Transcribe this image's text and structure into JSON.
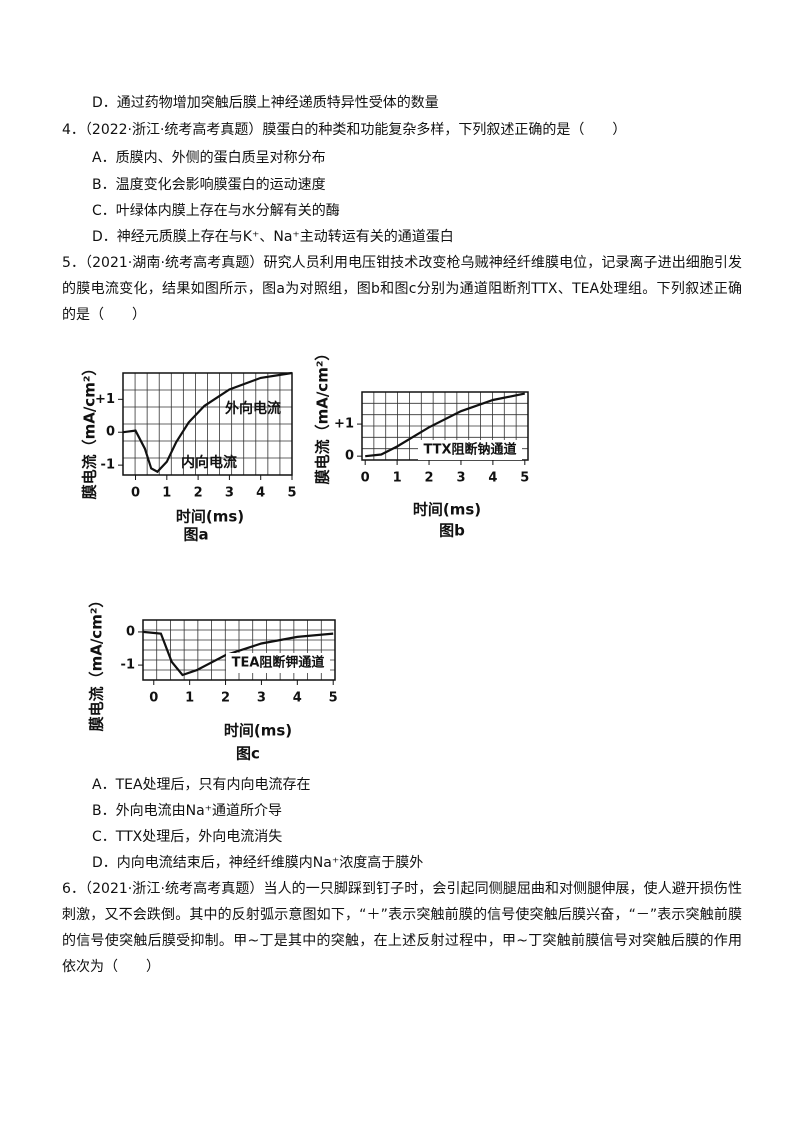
{
  "prev_option": "D．通过药物增加突触后膜上神经递质特异性受体的数量",
  "q4": {
    "text": "4．（2022·浙江·统考高考真题）膜蛋白的种类和功能复杂多样，下列叙述正确的是（　　）",
    "options": [
      "A．质膜内、外侧的蛋白质呈对称分布",
      "B．温度变化会影响膜蛋白的运动速度",
      "C．叶绿体内膜上存在与水分解有关的酶",
      "D．神经元质膜上存在与K⁺、Na⁺主动转运有关的通道蛋白"
    ]
  },
  "q5": {
    "text": "5．（2021·湖南·统考高考真题）研究人员利用电压钳技术改变枪乌贼神经纤维膜电位，记录离子进出细胞引发的膜电流变化，结果如图所示，图a为对照组，图b和图c分别为通道阻断剂TTX、TEA处理组。下列叙述正确的是（　　）",
    "figures": [
      {
        "type": "line",
        "caption": "图a",
        "x_label": "时间(ms)",
        "y_label": "膜电流（mA/cm²）",
        "x": [
          -0.4,
          0,
          0.3,
          0.5,
          0.7,
          1.0,
          1.3,
          1.7,
          2.2,
          3,
          4,
          5
        ],
        "values": [
          0,
          0.05,
          -0.5,
          -1.1,
          -1.2,
          -0.9,
          -0.3,
          0.3,
          0.8,
          1.3,
          1.65,
          1.8
        ],
        "xlim": [
          -0.4,
          5
        ],
        "ylim": [
          -1.3,
          1.8
        ],
        "xticks": [
          0,
          1,
          2,
          3,
          4,
          5
        ],
        "yticks": [
          {
            "value": 1,
            "label": "+1"
          },
          0,
          -1
        ],
        "annotations": [
          "外向电流",
          "内向电流"
        ]
      },
      {
        "type": "line",
        "caption": "图b",
        "x_label": "时间(ms)",
        "y_label": "膜电流（mA/cm²）",
        "x": [
          0,
          0.5,
          1,
          2,
          3,
          4,
          5
        ],
        "values": [
          0,
          0.05,
          0.3,
          0.9,
          1.4,
          1.75,
          1.95
        ],
        "xlim": [
          -0.1,
          5.1
        ],
        "ylim": [
          -0.12,
          2.0
        ],
        "xticks": [
          0,
          1,
          2,
          3,
          4,
          5
        ],
        "yticks": [
          {
            "value": 1,
            "label": "+1"
          },
          0
        ],
        "annotations": [
          "TTX阻断钠通道"
        ]
      },
      {
        "type": "line",
        "caption": "图c",
        "x_label": "时间(ms)",
        "y_label": "膜电流（mA/cm²）",
        "x": [
          -0.3,
          0.2,
          0.5,
          0.8,
          1.2,
          2,
          3,
          4,
          5
        ],
        "values": [
          0,
          -0.05,
          -0.9,
          -1.3,
          -1.15,
          -0.7,
          -0.35,
          -0.15,
          -0.05
        ],
        "xlim": [
          -0.3,
          5.05
        ],
        "ylim": [
          -1.45,
          0.36
        ],
        "xticks": [
          0,
          1,
          2,
          3,
          4,
          5
        ],
        "yticks": [
          0,
          -1
        ],
        "annotations": [
          "TEA阻断钾通道"
        ]
      }
    ],
    "options": [
      "A．TEA处理后，只有内向电流存在",
      "B．外向电流由Na⁺通道所介导",
      "C．TTX处理后，外向电流消失",
      "D．内向电流结束后，神经纤维膜内Na⁺浓度高于膜外"
    ]
  },
  "q6": {
    "text": "6．（2021·浙江·统考高考真题）当人的一只脚踩到钉子时，会引起同侧腿屈曲和对侧腿伸展，使人避开损伤性刺激，又不会跌倒。其中的反射弧示意图如下，“＋”表示突触前膜的信号使突触后膜兴奋，“－”表示突触前膜的信号使突触后膜受抑制。甲~丁是其中的突触，在上述反射过程中，甲~丁突触前膜信号对突触后膜的作用依次为（　　）"
  }
}
